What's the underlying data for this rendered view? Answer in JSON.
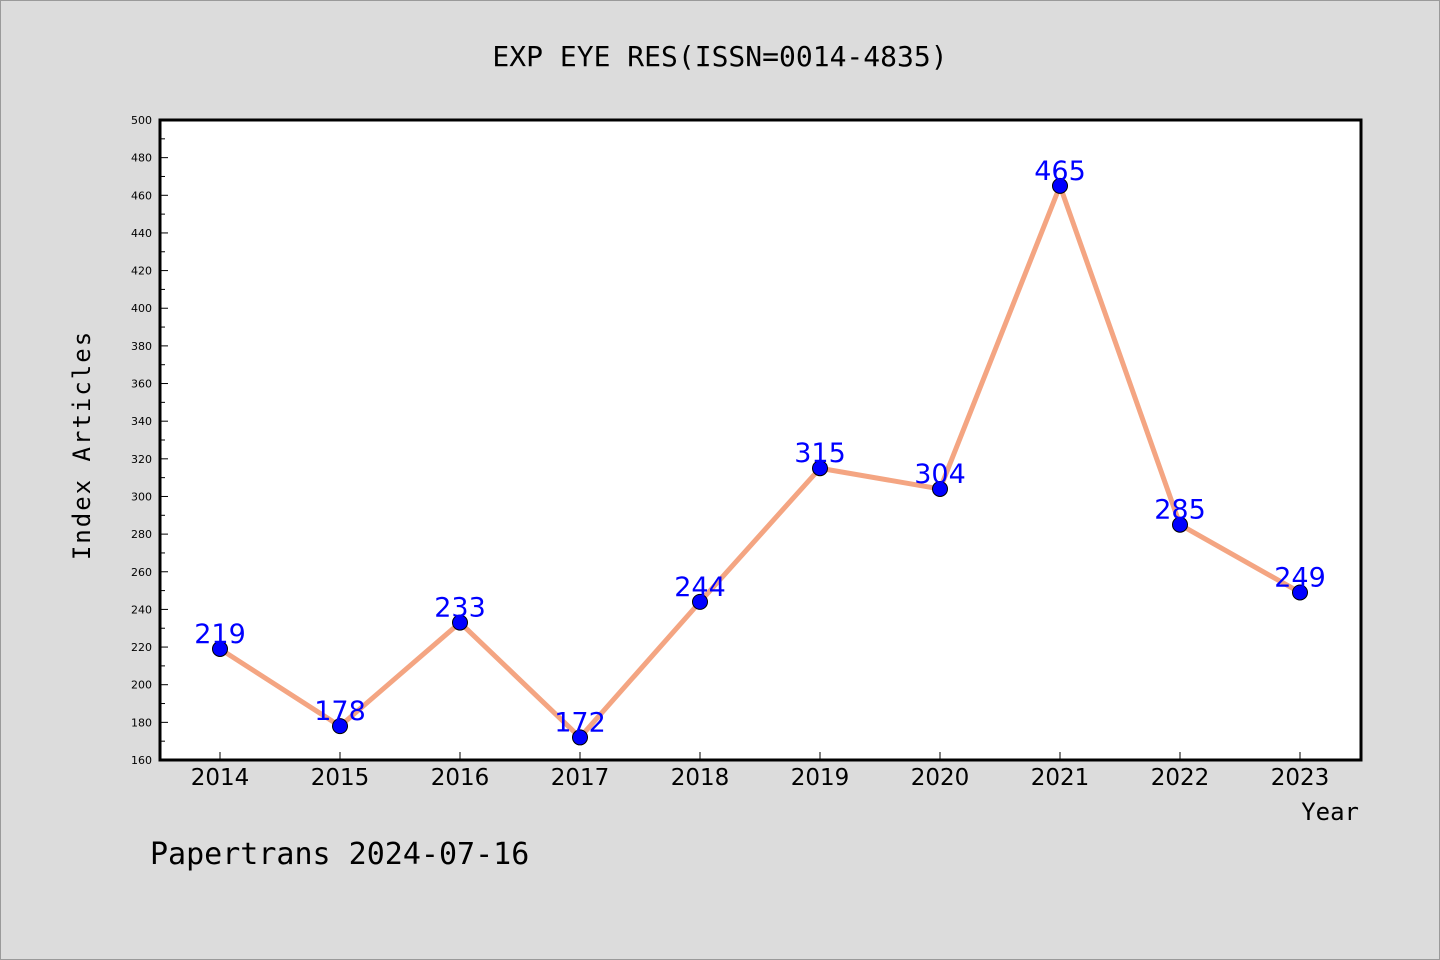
{
  "chart_data": {
    "type": "line",
    "title": "EXP EYE RES(ISSN=0014-4835)",
    "xlabel": "Year",
    "ylabel": "Index Articles",
    "categories": [
      "2014",
      "2015",
      "2016",
      "2017",
      "2018",
      "2019",
      "2020",
      "2021",
      "2022",
      "2023"
    ],
    "series": [
      {
        "values": [
          219,
          178,
          233,
          172,
          244,
          315,
          304,
          465,
          285,
          249
        ]
      }
    ],
    "ylim": [
      160,
      500
    ],
    "y_ticks": [
      160,
      180,
      200,
      220,
      240,
      260,
      280,
      300,
      320,
      340,
      360,
      380,
      400,
      420,
      440,
      460,
      480,
      500
    ],
    "data_labels": true,
    "grid": false,
    "legend": "none",
    "colors": {
      "line": "#f4a582",
      "marker": "#0000ff",
      "label": "#0000ff",
      "plot_bg": "#ffffff",
      "page_bg": "#dcdcdc"
    }
  },
  "footer": {
    "credit": "Papertrans 2024-07-16"
  }
}
